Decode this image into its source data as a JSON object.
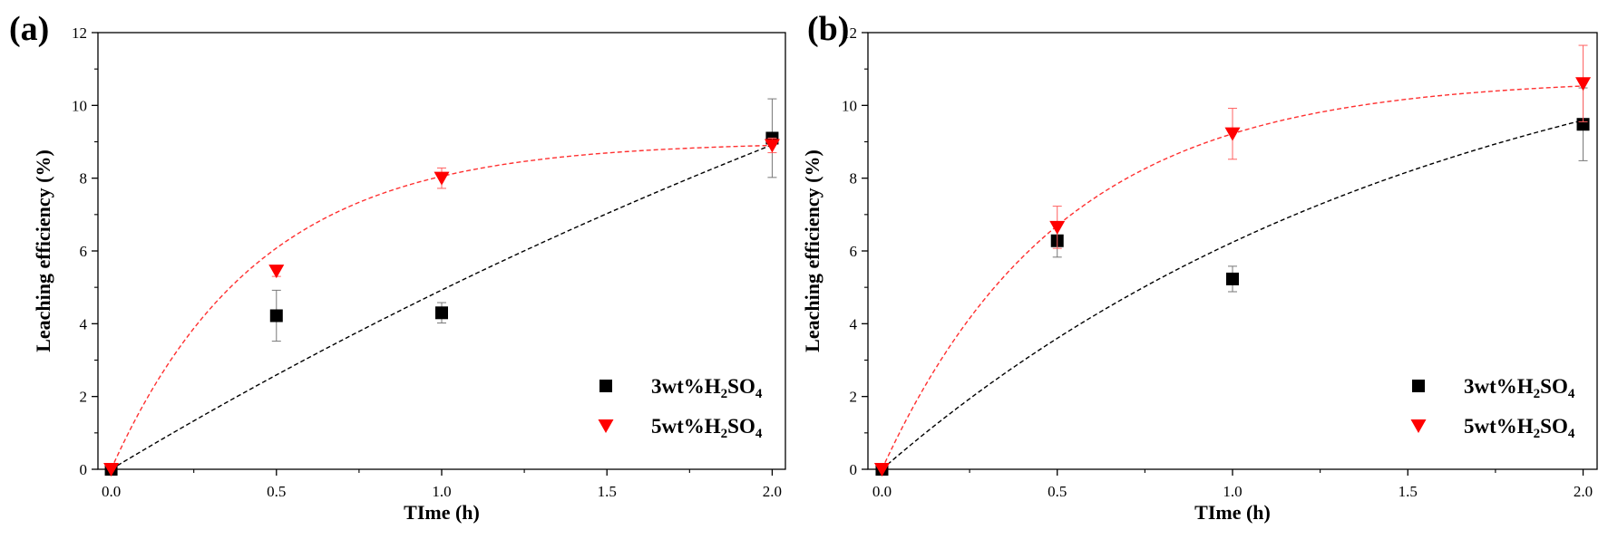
{
  "chart_data": [
    {
      "type": "scatter",
      "panel_label": "(a)",
      "xlabel": "TIme (h)",
      "ylabel": "Leaching efficiency (%)",
      "xlim": [
        -0.04,
        2.04
      ],
      "ylim": [
        0,
        12
      ],
      "xticks": [
        0.0,
        0.5,
        1.0,
        1.5,
        2.0
      ],
      "xtick_labels": [
        "0.0",
        "0.5",
        "1.0",
        "1.5",
        "2.0"
      ],
      "yticks": [
        0,
        2,
        4,
        6,
        8,
        10,
        12
      ],
      "ytick_labels": [
        "0",
        "2",
        "4",
        "6",
        "8",
        "10",
        "12"
      ],
      "grid": false,
      "legend_position": "bottom-right",
      "series": [
        {
          "name": "3wt%H2SO4",
          "legend": {
            "prefix": "3wt%H",
            "sub1": "2",
            "mid": "SO",
            "sub2": "4"
          },
          "marker": "square",
          "color": "#000000",
          "x": [
            0.0,
            0.5,
            1.0,
            2.0
          ],
          "y": [
            0.0,
            4.22,
            4.3,
            9.1
          ],
          "err": [
            0.0,
            0.7,
            0.28,
            1.08
          ],
          "fit": {
            "type": "saturation",
            "A": 26.0,
            "k": 0.21,
            "style": "dashed",
            "color": "#000000"
          }
        },
        {
          "name": "5wt%H2SO4",
          "legend": {
            "prefix": "5wt%H",
            "sub1": "2",
            "mid": "SO",
            "sub2": "4"
          },
          "marker": "triangle-down",
          "color": "#ff0000",
          "x": [
            0.0,
            0.5,
            1.0,
            2.0
          ],
          "y": [
            0.0,
            5.45,
            8.0,
            8.9
          ],
          "err": [
            0.0,
            0.15,
            0.28,
            0.2
          ],
          "fit": {
            "type": "saturation",
            "A": 9.0,
            "k": 2.25,
            "style": "dashed",
            "color": "#ff3030"
          }
        }
      ]
    },
    {
      "type": "scatter",
      "panel_label": "(b)",
      "xlabel": "TIme (h)",
      "ylabel": "Leaching efficiency (%)",
      "xlim": [
        -0.04,
        2.04
      ],
      "ylim": [
        0,
        12
      ],
      "xticks": [
        0.0,
        0.5,
        1.0,
        1.5,
        2.0
      ],
      "xtick_labels": [
        "0.0",
        "0.5",
        "1.0",
        "1.5",
        "2.0"
      ],
      "yticks": [
        0,
        2,
        4,
        6,
        8,
        10,
        12
      ],
      "ytick_labels": [
        "0",
        "2",
        "4",
        "6",
        "8",
        "10",
        "12"
      ],
      "grid": false,
      "legend_position": "bottom-right",
      "series": [
        {
          "name": "3wt%H2SO4",
          "legend": {
            "prefix": "3wt%H",
            "sub1": "2",
            "mid": "SO",
            "sub2": "4"
          },
          "marker": "square",
          "color": "#000000",
          "x": [
            0.0,
            0.5,
            1.0,
            2.0
          ],
          "y": [
            0.0,
            6.28,
            5.23,
            9.48
          ],
          "err": [
            0.0,
            0.45,
            0.35,
            1.0
          ],
          "fit": {
            "type": "saturation",
            "A": 13.5,
            "k": 0.62,
            "style": "dashed",
            "color": "#000000"
          }
        },
        {
          "name": "5wt%H2SO4",
          "legend": {
            "prefix": "5wt%H",
            "sub1": "2",
            "mid": "SO",
            "sub2": "4"
          },
          "marker": "triangle-down",
          "color": "#ff0000",
          "x": [
            0.0,
            0.5,
            1.0,
            2.0
          ],
          "y": [
            0.0,
            6.65,
            9.22,
            10.6
          ],
          "err": [
            0.0,
            0.58,
            0.7,
            1.05
          ],
          "fit": {
            "type": "saturation",
            "A": 10.75,
            "k": 1.95,
            "style": "dashed",
            "color": "#ff3030"
          }
        }
      ]
    }
  ]
}
